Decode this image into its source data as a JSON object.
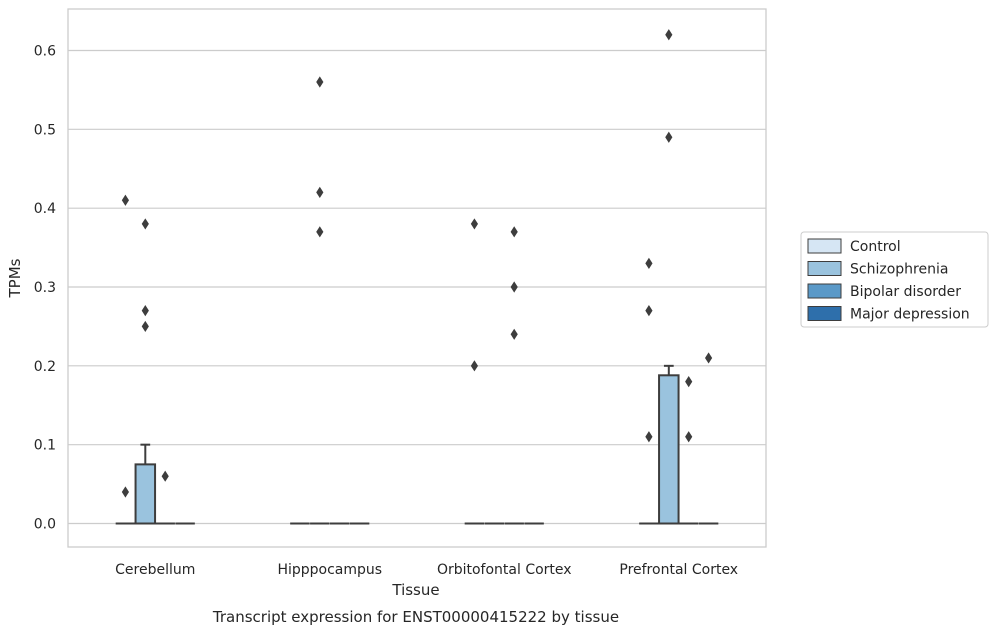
{
  "caption": "Transcript expression for ENST00000415222 by tissue",
  "chart_data": {
    "type": "box",
    "xlabel": "Tissue",
    "ylabel": "TPMs",
    "ylim": [
      -0.03,
      0.65
    ],
    "yticks": [
      0.0,
      0.1,
      0.2,
      0.3,
      0.4,
      0.5,
      0.6
    ],
    "ytick_labels": [
      "0.0",
      "0.1",
      "0.2",
      "0.3",
      "0.4",
      "0.5",
      "0.6"
    ],
    "categories": [
      "Cerebellum",
      "Hipppocampus",
      "Orbitofontal Cortex",
      "Prefrontal Cortex"
    ],
    "grid": "horizontal",
    "legend_position": "right",
    "series": [
      {
        "name": "Control",
        "color": "#d6e6f4",
        "boxes": [
          {
            "q1": 0,
            "median": 0,
            "q3": 0,
            "whisker_low": 0,
            "whisker_high": 0,
            "outliers": [
              0.04,
              0.41
            ]
          },
          {
            "q1": 0,
            "median": 0,
            "q3": 0,
            "whisker_low": 0,
            "whisker_high": 0,
            "outliers": []
          },
          {
            "q1": 0,
            "median": 0,
            "q3": 0,
            "whisker_low": 0,
            "whisker_high": 0,
            "outliers": [
              0.2,
              0.38
            ]
          },
          {
            "q1": 0,
            "median": 0,
            "q3": 0,
            "whisker_low": 0,
            "whisker_high": 0,
            "outliers": [
              0.11,
              0.27,
              0.33
            ]
          }
        ]
      },
      {
        "name": "Schizophrenia",
        "color": "#9ac3de",
        "boxes": [
          {
            "q1": 0,
            "median": 0,
            "q3": 0.075,
            "whisker_low": 0,
            "whisker_high": 0.1,
            "outliers": [
              0.25,
              0.27,
              0.38
            ]
          },
          {
            "q1": 0,
            "median": 0,
            "q3": 0,
            "whisker_low": 0,
            "whisker_high": 0,
            "outliers": [
              0.37,
              0.42,
              0.56
            ]
          },
          {
            "q1": 0,
            "median": 0,
            "q3": 0,
            "whisker_low": 0,
            "whisker_high": 0,
            "outliers": []
          },
          {
            "q1": 0,
            "median": 0,
            "q3": 0.188,
            "whisker_low": 0,
            "whisker_high": 0.2,
            "outliers": [
              0.49,
              0.62
            ]
          }
        ]
      },
      {
        "name": "Bipolar disorder",
        "color": "#5a99c8",
        "boxes": [
          {
            "q1": 0,
            "median": 0,
            "q3": 0,
            "whisker_low": 0,
            "whisker_high": 0,
            "outliers": [
              0.06
            ]
          },
          {
            "q1": 0,
            "median": 0,
            "q3": 0,
            "whisker_low": 0,
            "whisker_high": 0,
            "outliers": []
          },
          {
            "q1": 0,
            "median": 0,
            "q3": 0,
            "whisker_low": 0,
            "whisker_high": 0,
            "outliers": [
              0.24,
              0.3,
              0.37
            ]
          },
          {
            "q1": 0,
            "median": 0,
            "q3": 0,
            "whisker_low": 0,
            "whisker_high": 0,
            "outliers": [
              0.11,
              0.18
            ]
          }
        ]
      },
      {
        "name": "Major depression",
        "color": "#2e6fab",
        "boxes": [
          {
            "q1": 0,
            "median": 0,
            "q3": 0,
            "whisker_low": 0,
            "whisker_high": 0,
            "outliers": []
          },
          {
            "q1": 0,
            "median": 0,
            "q3": 0,
            "whisker_low": 0,
            "whisker_high": 0,
            "outliers": []
          },
          {
            "q1": 0,
            "median": 0,
            "q3": 0,
            "whisker_low": 0,
            "whisker_high": 0,
            "outliers": []
          },
          {
            "q1": 0,
            "median": 0,
            "q3": 0,
            "whisker_low": 0,
            "whisker_high": 0,
            "outliers": [
              0.21
            ]
          }
        ]
      }
    ],
    "line_color": "#3d3d3d",
    "grid_color": "#cccccc",
    "frame_color": "#cccccc"
  }
}
